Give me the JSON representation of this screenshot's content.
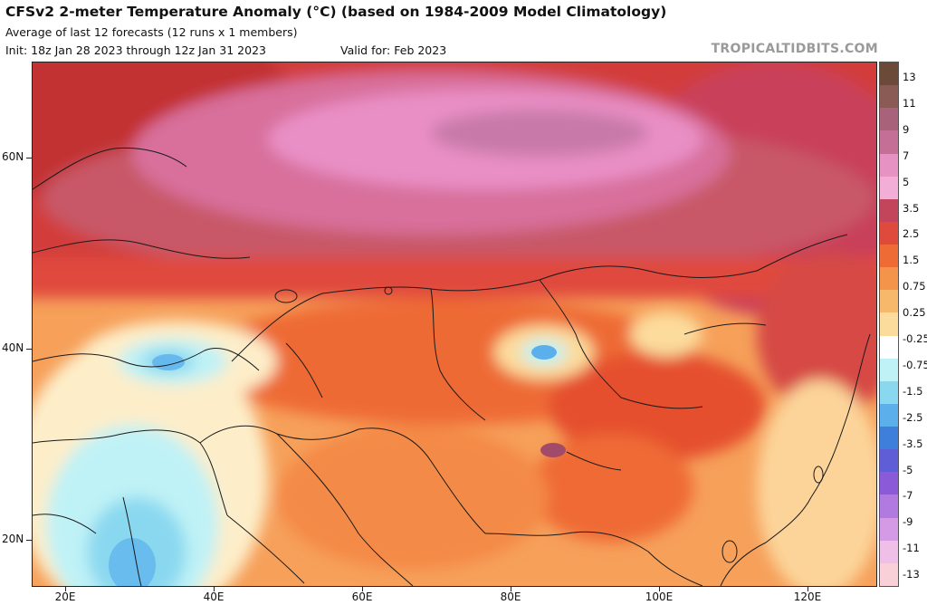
{
  "header": {
    "title": "CFSv2 2-meter Temperature Anomaly (°C) (based on 1984-2009 Model Climatology)",
    "subtitle": "Average of last 12 forecasts (12 runs x 1 members)",
    "init": "Init: 18z Jan 28 2023 through 12z Jan 31 2023",
    "valid": "Valid for: Feb 2023",
    "credit": "TROPICALTIDBITS.COM"
  },
  "axes": {
    "lat_labels": [
      "60N",
      "40N",
      "20N"
    ],
    "lon_labels": [
      "20E",
      "40E",
      "60E",
      "80E",
      "100E",
      "120E"
    ]
  },
  "legend": {
    "labels": [
      "13",
      "11",
      "9",
      "7",
      "5",
      "3.5",
      "2.5",
      "1.5",
      "0.75",
      "0.25",
      "-0.25",
      "-0.75",
      "-1.5",
      "-2.5",
      "-3.5",
      "-5",
      "-7",
      "-9",
      "-11",
      "-13"
    ],
    "colors": [
      "#6b4a3a",
      "#8a5a55",
      "#a8627a",
      "#c47096",
      "#e693c4",
      "#f2aed6",
      "#c2455b",
      "#e04a3c",
      "#ee6b35",
      "#f4934a",
      "#f8b86c",
      "#fcdc9c",
      "#ffffff",
      "#bff2f6",
      "#8ad8f0",
      "#5bb0ec",
      "#3f7fdc",
      "#5f5ed6",
      "#8a5ad8",
      "#b07ae0",
      "#d49ae6",
      "#f0bfe8",
      "#fad0d8"
    ]
  },
  "colors": {
    "ocean_text": "#111111",
    "credit": "#9a9a9a"
  }
}
